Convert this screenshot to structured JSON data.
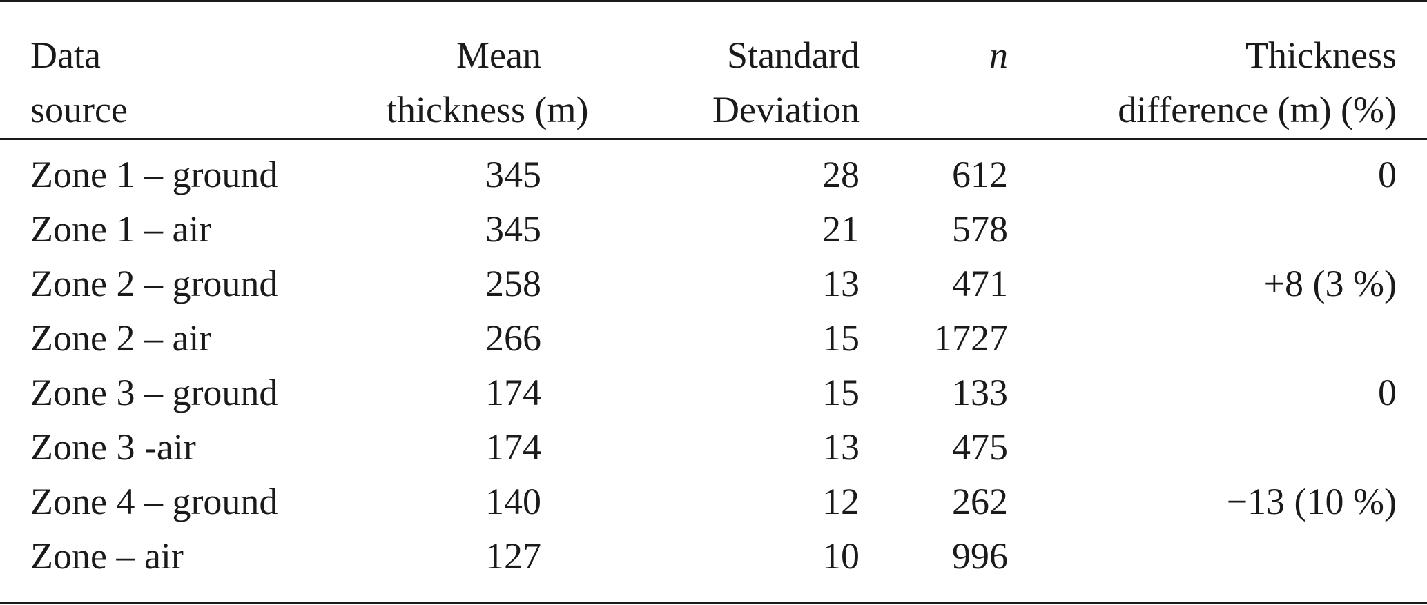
{
  "table": {
    "headers": {
      "source": [
        "Data",
        "source"
      ],
      "mean": [
        "Mean",
        "thickness (m)"
      ],
      "sd": [
        "Standard",
        "Deviation"
      ],
      "n": [
        "",
        "n"
      ],
      "diff": [
        "Thickness",
        "difference (m) (%)"
      ]
    },
    "rows": [
      {
        "source": "Zone 1 – ground",
        "mean": "345",
        "sd": "28",
        "n": "612",
        "diff": "0"
      },
      {
        "source": "Zone 1 – air",
        "mean": "345",
        "sd": "21",
        "n": "578",
        "diff": ""
      },
      {
        "source": "Zone 2 – ground",
        "mean": "258",
        "sd": "13",
        "n": "471",
        "diff": "+8 (3 %)"
      },
      {
        "source": "Zone 2 – air",
        "mean": "266",
        "sd": "15",
        "n": "1727",
        "diff": ""
      },
      {
        "source": "Zone 3 – ground",
        "mean": "174",
        "sd": "15",
        "n": "133",
        "diff": "0"
      },
      {
        "source": "Zone 3 -air",
        "mean": "174",
        "sd": "13",
        "n": "475",
        "diff": ""
      },
      {
        "source": "Zone 4 – ground",
        "mean": "140",
        "sd": "12",
        "n": "262",
        "diff": "−13 (10 %)"
      },
      {
        "source": "Zone – air",
        "mean": "127",
        "sd": "10",
        "n": "996",
        "diff": ""
      }
    ]
  }
}
